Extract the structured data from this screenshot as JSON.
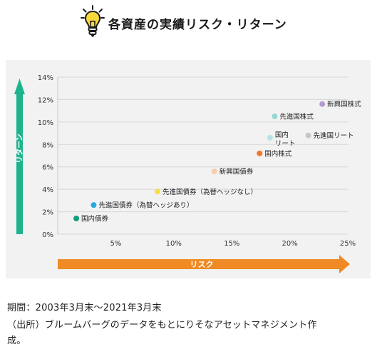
{
  "header": {
    "title": "各資産の実績リスク・リターン",
    "icon": "lightbulb-icon",
    "icon_color": "#f8d83a"
  },
  "chart_data": {
    "type": "scatter",
    "title": "各資産の実績リスク・リターン",
    "xlabel": "リスク",
    "ylabel": "リターン",
    "xlim": [
      0,
      25
    ],
    "ylim": [
      0,
      14
    ],
    "x_ticks": [
      "5%",
      "10%",
      "15%",
      "20%",
      "25%"
    ],
    "y_ticks": [
      "0%",
      "2%",
      "4%",
      "6%",
      "8%",
      "10%",
      "12%",
      "14%"
    ],
    "grid": "horizontal",
    "x_arrow_color": "#f08a24",
    "y_arrow_color": "#1db38e",
    "points": [
      {
        "label": "国内債券",
        "x": 1.6,
        "y": 1.4,
        "color": "#119e7c"
      },
      {
        "label": "先進国債券（為替ヘッジあり）",
        "x": 3.1,
        "y": 2.6,
        "color": "#29a8e0"
      },
      {
        "label": "先進国債券（為替ヘッジなし）",
        "x": 8.6,
        "y": 3.8,
        "color": "#f4e04d"
      },
      {
        "label": "新興国債券",
        "x": 13.5,
        "y": 5.6,
        "color": "#f8cfae"
      },
      {
        "label": "国内株式",
        "x": 17.4,
        "y": 7.2,
        "color": "#f0782b"
      },
      {
        "label": [
          "国内",
          "リート"
        ],
        "x": 18.3,
        "y": 8.6,
        "color": "#b5e3e6"
      },
      {
        "label": "先進国株式",
        "x": 18.7,
        "y": 10.5,
        "color": "#98d8d4"
      },
      {
        "label": "先進国リート",
        "x": 21.6,
        "y": 8.8,
        "color": "#c7c7c7"
      },
      {
        "label": "新興国株式",
        "x": 22.8,
        "y": 11.6,
        "color": "#b09ecd"
      }
    ]
  },
  "footnotes": {
    "period": "期間：2003年3月末〜2021年3月末",
    "source_line1": "（出所）ブルームバーグのデータをもとにりそなアセットマネジメント作",
    "source_line2": "成。"
  }
}
